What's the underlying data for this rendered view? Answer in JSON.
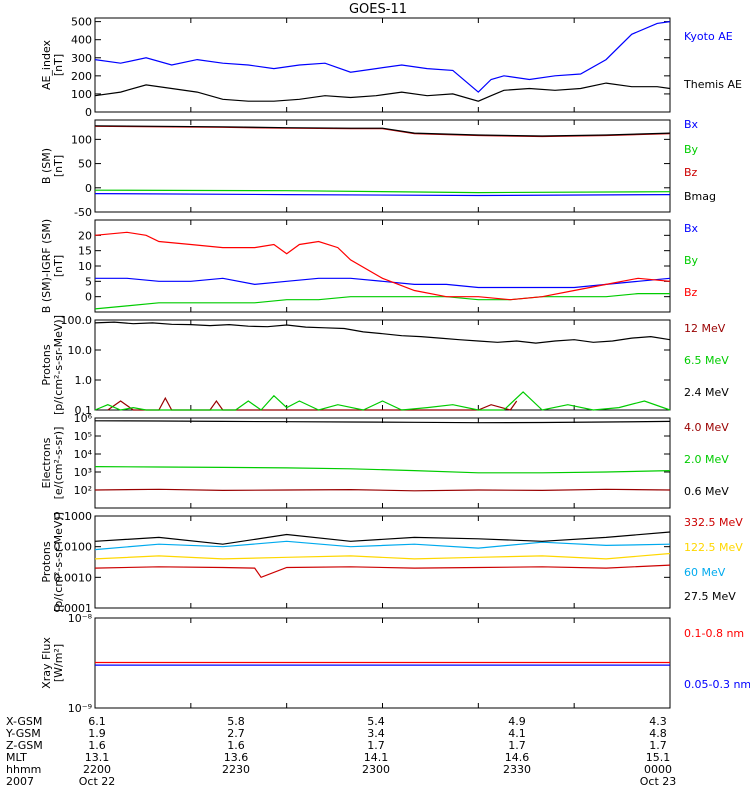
{
  "title": "GOES-11",
  "colors": {
    "blue": "#0000ff",
    "black": "#000000",
    "green": "#00cc00",
    "red": "#cc0000",
    "brightred": "#ff0000",
    "darkred": "#990000",
    "yellow": "#ffd700",
    "cyan": "#00aaee"
  },
  "chart_data": [
    {
      "type": "line",
      "ylabel": [
        "AE_index",
        "[nT]"
      ],
      "ylim": [
        0,
        520
      ],
      "scale": "linear",
      "yticks": [
        0,
        100,
        200,
        300,
        400,
        500
      ],
      "yticklabels": [
        "0",
        "100",
        "200",
        "300",
        "400",
        "500"
      ],
      "series": [
        {
          "name": "Kyoto AE",
          "color": "#0000ff",
          "x": [
            0,
            4,
            8,
            12,
            16,
            20,
            24,
            28,
            32,
            36,
            40,
            44,
            48,
            52,
            56,
            60,
            62,
            64,
            68,
            72,
            76,
            80,
            84,
            88,
            90
          ],
          "values": [
            290,
            270,
            300,
            260,
            290,
            270,
            260,
            240,
            260,
            270,
            220,
            240,
            260,
            240,
            230,
            110,
            180,
            200,
            180,
            200,
            210,
            290,
            430,
            490,
            500
          ]
        },
        {
          "name": "Themis AE",
          "color": "#000000",
          "x": [
            0,
            4,
            8,
            12,
            16,
            20,
            24,
            28,
            32,
            36,
            40,
            44,
            48,
            52,
            56,
            60,
            62,
            64,
            68,
            72,
            76,
            80,
            84,
            88,
            90
          ],
          "values": [
            90,
            110,
            150,
            130,
            110,
            70,
            60,
            60,
            70,
            90,
            80,
            90,
            110,
            90,
            100,
            60,
            90,
            120,
            130,
            120,
            130,
            160,
            140,
            140,
            130
          ]
        }
      ]
    },
    {
      "type": "line",
      "ylabel": [
        "B (SM)",
        "[nT]"
      ],
      "ylim": [
        -50,
        140
      ],
      "scale": "linear",
      "yticks": [
        -50,
        0,
        50,
        100
      ],
      "yticklabels": [
        "-50",
        "0",
        "50",
        "100"
      ],
      "series": [
        {
          "name": "Bx",
          "color": "#0000ff",
          "x": [
            0,
            30,
            60,
            90
          ],
          "values": [
            -12,
            -14,
            -16,
            -14
          ]
        },
        {
          "name": "By",
          "color": "#00cc00",
          "x": [
            0,
            30,
            60,
            90
          ],
          "values": [
            -5,
            -6,
            -10,
            -8
          ]
        },
        {
          "name": "Bz",
          "color": "#cc0000",
          "x": [
            0,
            10,
            20,
            30,
            40,
            45,
            50,
            60,
            70,
            80,
            90
          ],
          "values": [
            127,
            126,
            125,
            123,
            122,
            122,
            112,
            108,
            106,
            108,
            112
          ]
        },
        {
          "name": "Bmag",
          "color": "#000000",
          "x": [
            0,
            10,
            20,
            30,
            40,
            45,
            50,
            60,
            70,
            80,
            90
          ],
          "values": [
            128,
            127,
            126,
            124,
            123,
            123,
            113,
            109,
            107,
            109,
            113
          ]
        }
      ]
    },
    {
      "type": "line",
      "ylabel": [
        "B (SM)-IGRF (SM)",
        "[nT]"
      ],
      "ylim": [
        -5,
        25
      ],
      "scale": "linear",
      "yticks": [
        0,
        5,
        10,
        15,
        20
      ],
      "yticklabels": [
        "0",
        "5",
        "10",
        "15",
        "20"
      ],
      "series": [
        {
          "name": "Bx",
          "color": "#0000ff",
          "x": [
            0,
            5,
            10,
            15,
            20,
            25,
            30,
            35,
            40,
            45,
            50,
            55,
            60,
            65,
            70,
            75,
            80,
            85,
            90
          ],
          "values": [
            6,
            6,
            5,
            5,
            6,
            4,
            5,
            6,
            6,
            5,
            4,
            4,
            3,
            3,
            3,
            3,
            4,
            5,
            6
          ]
        },
        {
          "name": "By",
          "color": "#00cc00",
          "x": [
            0,
            5,
            10,
            15,
            20,
            25,
            30,
            35,
            40,
            45,
            50,
            55,
            60,
            65,
            70,
            75,
            80,
            85,
            90
          ],
          "values": [
            -4,
            -3,
            -2,
            -2,
            -2,
            -2,
            -1,
            -1,
            0,
            0,
            0,
            0,
            -1,
            -1,
            0,
            0,
            0,
            1,
            1
          ]
        },
        {
          "name": "Bz",
          "color": "#ff0000",
          "x": [
            0,
            5,
            8,
            10,
            15,
            20,
            25,
            28,
            30,
            32,
            35,
            38,
            40,
            45,
            50,
            55,
            60,
            65,
            70,
            75,
            80,
            85,
            90
          ],
          "values": [
            20,
            21,
            20,
            18,
            17,
            16,
            16,
            17,
            14,
            17,
            18,
            16,
            12,
            6,
            2,
            0,
            0,
            -1,
            0,
            2,
            4,
            6,
            5
          ]
        }
      ]
    },
    {
      "type": "line",
      "ylabel": [
        "Protons",
        "[p/(cm²-s-sr-MeV)]"
      ],
      "ylim": [
        0.1,
        100
      ],
      "scale": "log",
      "yticks": [
        0.1,
        1,
        10,
        100
      ],
      "yticklabels": [
        "0.1",
        "1.0",
        "10.0",
        "100.0"
      ],
      "series": [
        {
          "name": "12 MeV",
          "color": "#990000",
          "x": [
            2,
            4,
            6,
            10,
            11,
            12,
            18,
            19,
            20,
            60,
            62,
            65,
            66
          ],
          "values": [
            0.1,
            0.2,
            0.1,
            0.1,
            0.25,
            0.1,
            0.1,
            0.2,
            0.1,
            0.1,
            0.15,
            0.1,
            0.2
          ]
        },
        {
          "name": "6.5 MeV",
          "color": "#00cc00",
          "x": [
            0,
            2,
            4,
            6,
            8,
            10,
            22,
            24,
            26,
            28,
            30,
            32,
            35,
            38,
            42,
            45,
            48,
            52,
            56,
            60,
            64,
            67,
            70,
            74,
            78,
            82,
            86,
            90
          ],
          "values": [
            0.1,
            0.15,
            0.1,
            0.12,
            0.1,
            0.1,
            0.1,
            0.2,
            0.1,
            0.3,
            0.12,
            0.2,
            0.1,
            0.15,
            0.1,
            0.2,
            0.1,
            0.12,
            0.15,
            0.1,
            0.1,
            0.4,
            0.1,
            0.15,
            0.1,
            0.12,
            0.2,
            0.1
          ]
        },
        {
          "name": "2.4 MeV",
          "color": "#000000",
          "x": [
            0,
            3,
            6,
            9,
            12,
            15,
            18,
            21,
            24,
            27,
            30,
            33,
            36,
            39,
            42,
            45,
            48,
            51,
            54,
            57,
            60,
            63,
            66,
            69,
            72,
            75,
            78,
            81,
            84,
            87,
            90
          ],
          "values": [
            80,
            85,
            75,
            80,
            72,
            70,
            65,
            70,
            62,
            60,
            68,
            58,
            55,
            52,
            40,
            35,
            30,
            28,
            25,
            22,
            20,
            18,
            20,
            17,
            20,
            22,
            18,
            20,
            25,
            28,
            22
          ]
        }
      ]
    },
    {
      "type": "line",
      "ylabel": [
        "Electrons",
        "[e/(cm²-s-sr)]"
      ],
      "ylim": [
        10,
        1000000
      ],
      "scale": "log",
      "yticks": [
        100,
        1000,
        10000,
        100000,
        1000000
      ],
      "yticklabels": [
        "10²",
        "10³",
        "10⁴",
        "10⁵",
        "10⁶"
      ],
      "series": [
        {
          "name": "4.0 MeV",
          "color": "#990000",
          "x": [
            0,
            10,
            20,
            30,
            40,
            50,
            60,
            70,
            80,
            90
          ],
          "values": [
            100,
            110,
            95,
            100,
            105,
            90,
            100,
            95,
            110,
            100
          ]
        },
        {
          "name": "2.0 MeV",
          "color": "#00cc00",
          "x": [
            0,
            10,
            20,
            30,
            40,
            50,
            60,
            70,
            80,
            90
          ],
          "values": [
            2000,
            1900,
            1800,
            1700,
            1500,
            1200,
            900,
            900,
            1000,
            1200
          ]
        },
        {
          "name": "0.6 MeV",
          "color": "#000000",
          "x": [
            0,
            10,
            20,
            30,
            40,
            50,
            60,
            70,
            80,
            90
          ],
          "values": [
            700000,
            680000,
            650000,
            620000,
            600000,
            580000,
            550000,
            560000,
            600000,
            650000
          ]
        }
      ]
    },
    {
      "type": "line",
      "ylabel": [
        "Protons",
        "[p/(cm²-s-sr-MeV)]"
      ],
      "ylim": [
        0.0001,
        0.1
      ],
      "scale": "log",
      "yticks": [
        0.0001,
        0.001,
        0.01,
        0.1
      ],
      "yticklabels": [
        "0.0001",
        "0.0010",
        "0.0100",
        "0.1000"
      ],
      "series": [
        {
          "name": "332.5 MeV",
          "color": "#cc0000",
          "x": [
            0,
            10,
            20,
            25,
            26,
            30,
            40,
            50,
            60,
            70,
            80,
            90
          ],
          "values": [
            0.002,
            0.0022,
            0.0021,
            0.002,
            0.001,
            0.0021,
            0.0022,
            0.002,
            0.0021,
            0.0022,
            0.002,
            0.0025
          ]
        },
        {
          "name": "122.5 MeV",
          "color": "#ffd700",
          "x": [
            0,
            10,
            20,
            30,
            40,
            50,
            60,
            70,
            80,
            90
          ],
          "values": [
            0.004,
            0.005,
            0.004,
            0.0045,
            0.005,
            0.004,
            0.0045,
            0.005,
            0.004,
            0.006
          ]
        },
        {
          "name": "60 MeV",
          "color": "#00aaee",
          "x": [
            0,
            10,
            20,
            30,
            40,
            50,
            60,
            70,
            80,
            90
          ],
          "values": [
            0.008,
            0.012,
            0.01,
            0.015,
            0.01,
            0.012,
            0.009,
            0.014,
            0.011,
            0.012
          ]
        },
        {
          "name": "27.5 MeV",
          "color": "#000000",
          "x": [
            0,
            10,
            20,
            30,
            40,
            50,
            60,
            70,
            80,
            90
          ],
          "values": [
            0.015,
            0.02,
            0.012,
            0.025,
            0.015,
            0.02,
            0.018,
            0.015,
            0.02,
            0.03
          ]
        }
      ]
    },
    {
      "type": "line",
      "ylabel": [
        "Xray Flux",
        "[W/m²]"
      ],
      "ylim": [
        1e-09,
        1e-08
      ],
      "scale": "log",
      "yticks": [
        1e-09,
        1e-08
      ],
      "yticklabels": [
        "10⁻⁹",
        "10⁻⁸"
      ],
      "series": [
        {
          "name": "0.1-0.8 nm",
          "color": "#ff0000",
          "x": [
            0,
            90
          ],
          "values": [
            3.2e-09,
            3.2e-09
          ]
        },
        {
          "name": "0.05-0.3 nm",
          "color": "#0000ff",
          "x": [
            0,
            90
          ],
          "values": [
            3e-09,
            3e-09
          ]
        }
      ]
    }
  ],
  "footer": {
    "labels": [
      "X-GSM",
      "Y-GSM",
      "Z-GSM",
      "MLT",
      "hhmm",
      "2007"
    ],
    "columns": [
      [
        "6.1",
        "1.9",
        "1.6",
        "13.1",
        "2200",
        "Oct 22"
      ],
      [
        "5.8",
        "2.7",
        "1.6",
        "13.6",
        "2230",
        ""
      ],
      [
        "5.4",
        "3.4",
        "1.7",
        "14.1",
        "2300",
        ""
      ],
      [
        "4.9",
        "4.1",
        "1.7",
        "14.6",
        "2330",
        ""
      ],
      [
        "4.3",
        "4.8",
        "1.7",
        "15.1",
        "0000",
        "Oct 23"
      ]
    ]
  }
}
